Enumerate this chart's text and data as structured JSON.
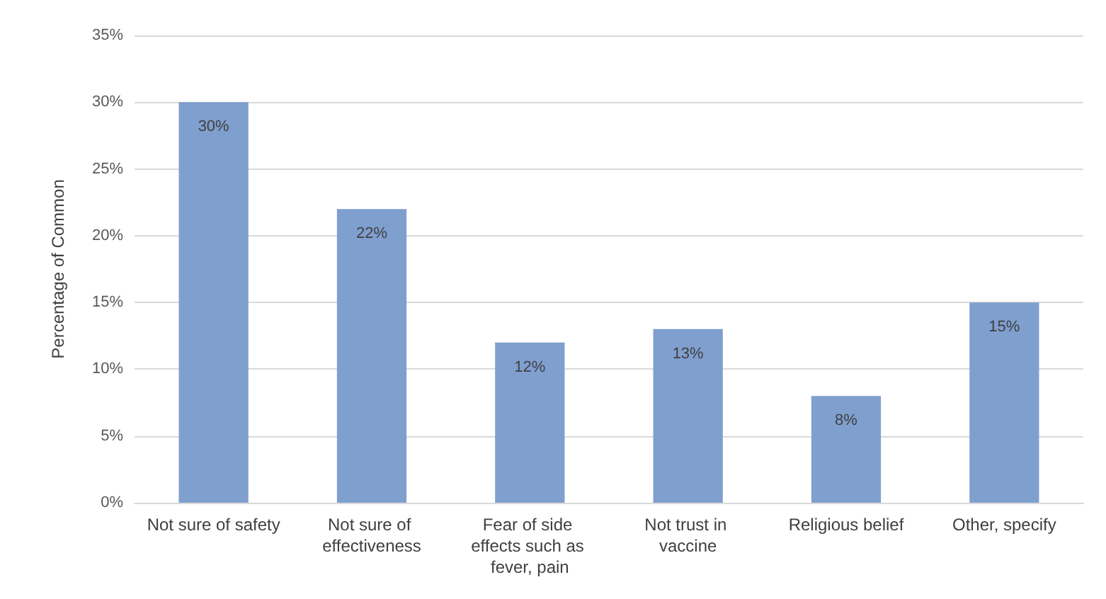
{
  "chart_data": {
    "type": "bar",
    "ylabel": "Percentage of Common",
    "categories": [
      "Not sure of safety",
      "Not sure of effectiveness",
      "Fear of side effects such as fever, pain",
      "Not trust in vaccine",
      "Religious belief",
      "Other, specify"
    ],
    "values": [
      30,
      22,
      12,
      13,
      8,
      15
    ],
    "value_labels": [
      "30%",
      "22%",
      "12%",
      "13%",
      "8%",
      "15%"
    ],
    "color": "#7f9fcf",
    "ylim": [
      0,
      35
    ],
    "yticks": [
      {
        "value": 0,
        "label": "0%"
      },
      {
        "value": 5,
        "label": "5%"
      },
      {
        "value": 10,
        "label": "10%"
      },
      {
        "value": 15,
        "label": "15%"
      },
      {
        "value": 20,
        "label": "20%"
      },
      {
        "value": 25,
        "label": "25%"
      },
      {
        "value": 30,
        "label": "30%"
      },
      {
        "value": 35,
        "label": "35%"
      }
    ],
    "grid": "y"
  }
}
